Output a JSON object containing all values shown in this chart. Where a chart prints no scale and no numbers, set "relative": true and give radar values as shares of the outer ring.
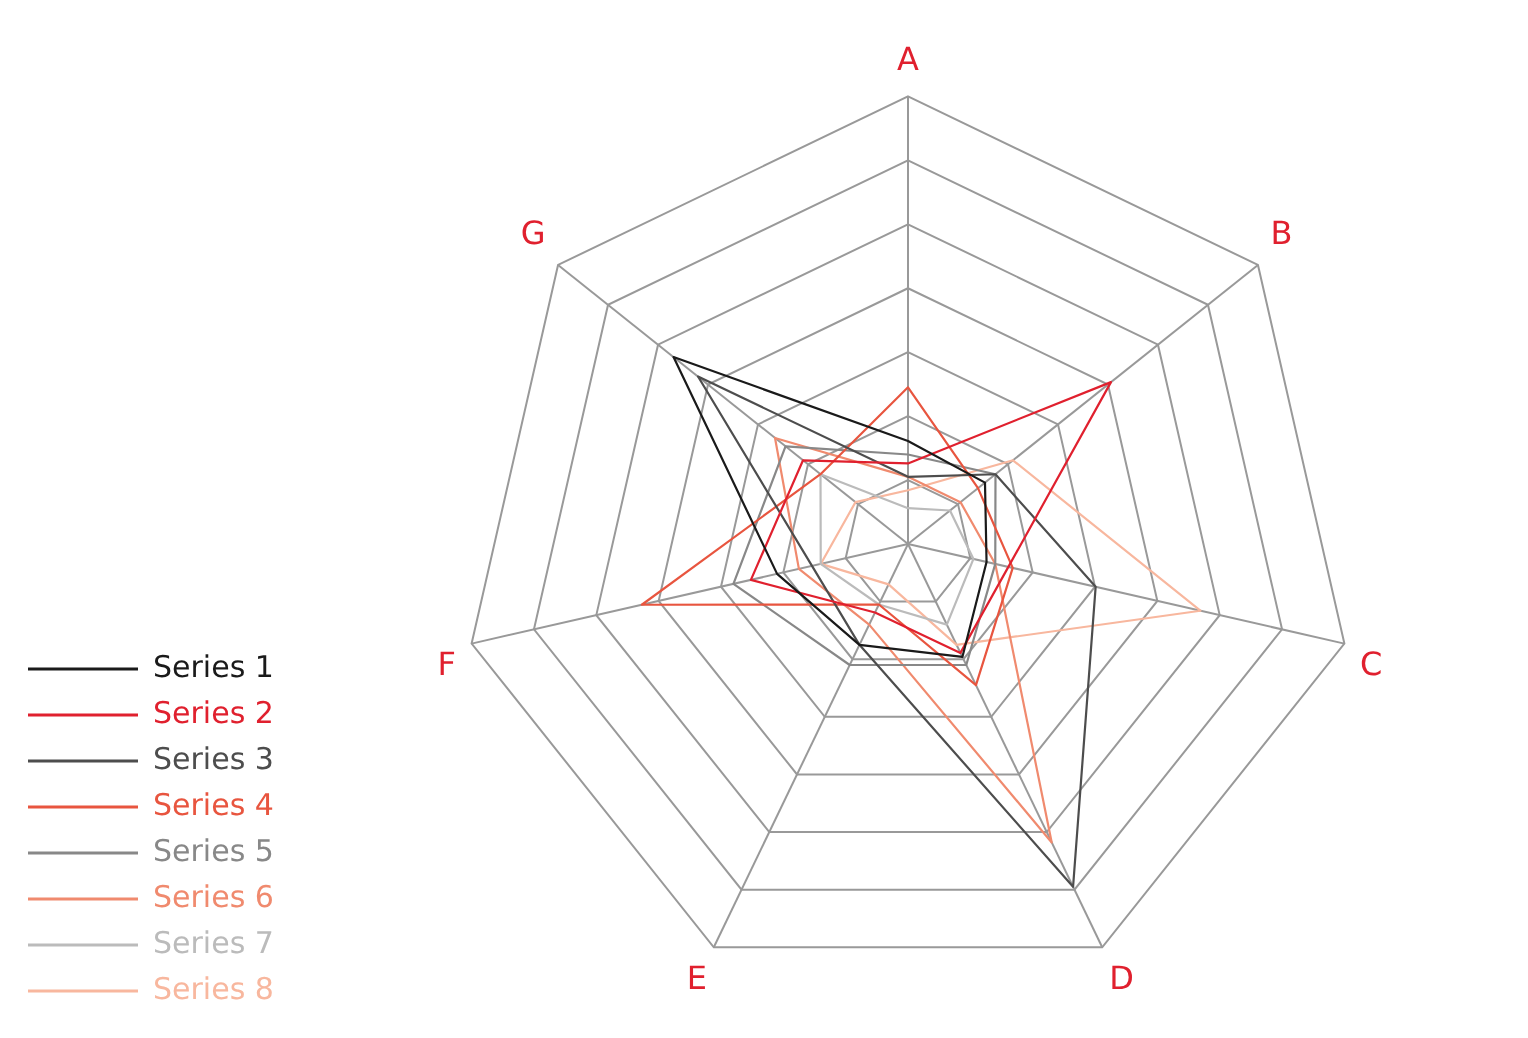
{
  "chart_data": {
    "type": "radar",
    "relative": true,
    "legend": "left",
    "categories": [
      "A",
      "B",
      "C",
      "D",
      "E",
      "F",
      "G"
    ],
    "series": [
      {
        "name": "Series 1",
        "color": "#1a1a1a",
        "values": [
          0.23,
          0.22,
          0.18,
          0.28,
          0.25,
          0.3,
          0.67
        ]
      },
      {
        "name": "Series 2",
        "color": "#e0202e",
        "values": [
          0.18,
          0.58,
          0.23,
          0.27,
          0.17,
          0.36,
          0.3
        ]
      },
      {
        "name": "Series 3",
        "color": "#4d4d4d",
        "values": [
          0.15,
          0.25,
          0.43,
          0.85,
          0.25,
          0.22,
          0.6
        ]
      },
      {
        "name": "Series 4",
        "color": "#e8553f",
        "values": [
          0.35,
          0.2,
          0.24,
          0.35,
          0.15,
          0.61,
          0.25
        ]
      },
      {
        "name": "Series 5",
        "color": "#888888",
        "values": [
          0.2,
          0.25,
          0.2,
          0.3,
          0.3,
          0.4,
          0.35
        ]
      },
      {
        "name": "Series 6",
        "color": "#f08a6e",
        "values": [
          0.15,
          0.15,
          0.2,
          0.74,
          0.2,
          0.25,
          0.38
        ]
      },
      {
        "name": "Series 7",
        "color": "#bbbbbb",
        "values": [
          0.08,
          0.12,
          0.15,
          0.2,
          0.15,
          0.2,
          0.25
        ]
      },
      {
        "name": "Series 8",
        "color": "#f8b79e",
        "values": [
          0.12,
          0.3,
          0.67,
          0.25,
          0.1,
          0.2,
          0.15
        ]
      }
    ]
  }
}
